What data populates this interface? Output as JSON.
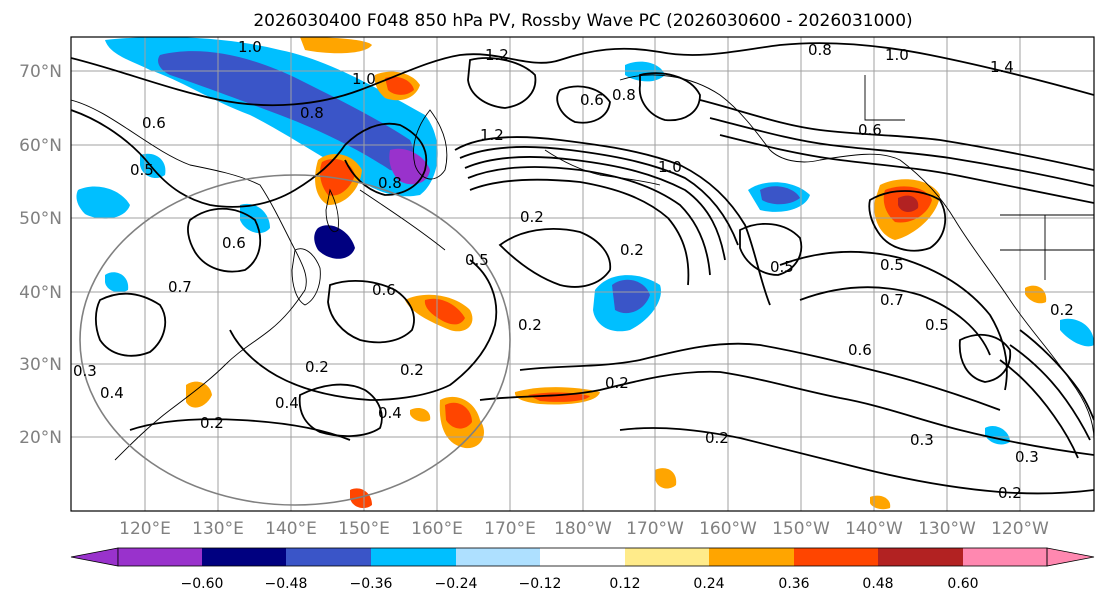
{
  "title": "2026030400 F048 850 hPa PV, Rossby Wave PC (2026030600 - 2026031000)",
  "lat_labels": [
    "70°N",
    "60°N",
    "50°N",
    "40°N",
    "30°N",
    "20°N"
  ],
  "lon_labels": [
    "120°E",
    "130°E",
    "140°E",
    "150°E",
    "160°E",
    "170°E",
    "180°W",
    "170°W",
    "160°W",
    "150°W",
    "140°W",
    "130°W",
    "120°W"
  ],
  "colorbar": {
    "colors": [
      "#9932cc",
      "#000080",
      "#3a55c8",
      "#00bfff",
      "#aee0ff",
      "#ffffff",
      "#ffeb8a",
      "#ffa500",
      "#ff4500",
      "#b22222",
      "#ff88b0"
    ],
    "tick_labels": [
      "−0.60",
      "−0.48",
      "−0.36",
      "−0.24",
      "−0.12",
      "0.12",
      "0.24",
      "0.36",
      "0.48",
      "0.60"
    ]
  },
  "contour_labels": [
    "1.0",
    "1.2",
    "1.0",
    "0.8",
    "1.4",
    "1.0",
    "0.6",
    "0.8",
    "1.2",
    "0.8",
    "0.5",
    "0.2",
    "1.0",
    "0.6",
    "0.5",
    "0.5",
    "0.2",
    "0.7",
    "0.5",
    "0.6",
    "0.2",
    "0.2",
    "0.2",
    "0.4",
    "0.2",
    "0.4",
    "0.2",
    "0.3",
    "0.2",
    "0.3",
    "0.4",
    "0.2",
    "0.6",
    "0.6",
    "0.6",
    "0.8",
    "0.7",
    "0.5",
    "0.3",
    "0.2"
  ],
  "shading_levels": [
    -0.6,
    -0.48,
    -0.36,
    -0.24,
    -0.12,
    0.12,
    0.24,
    0.36,
    0.48,
    0.6
  ]
}
